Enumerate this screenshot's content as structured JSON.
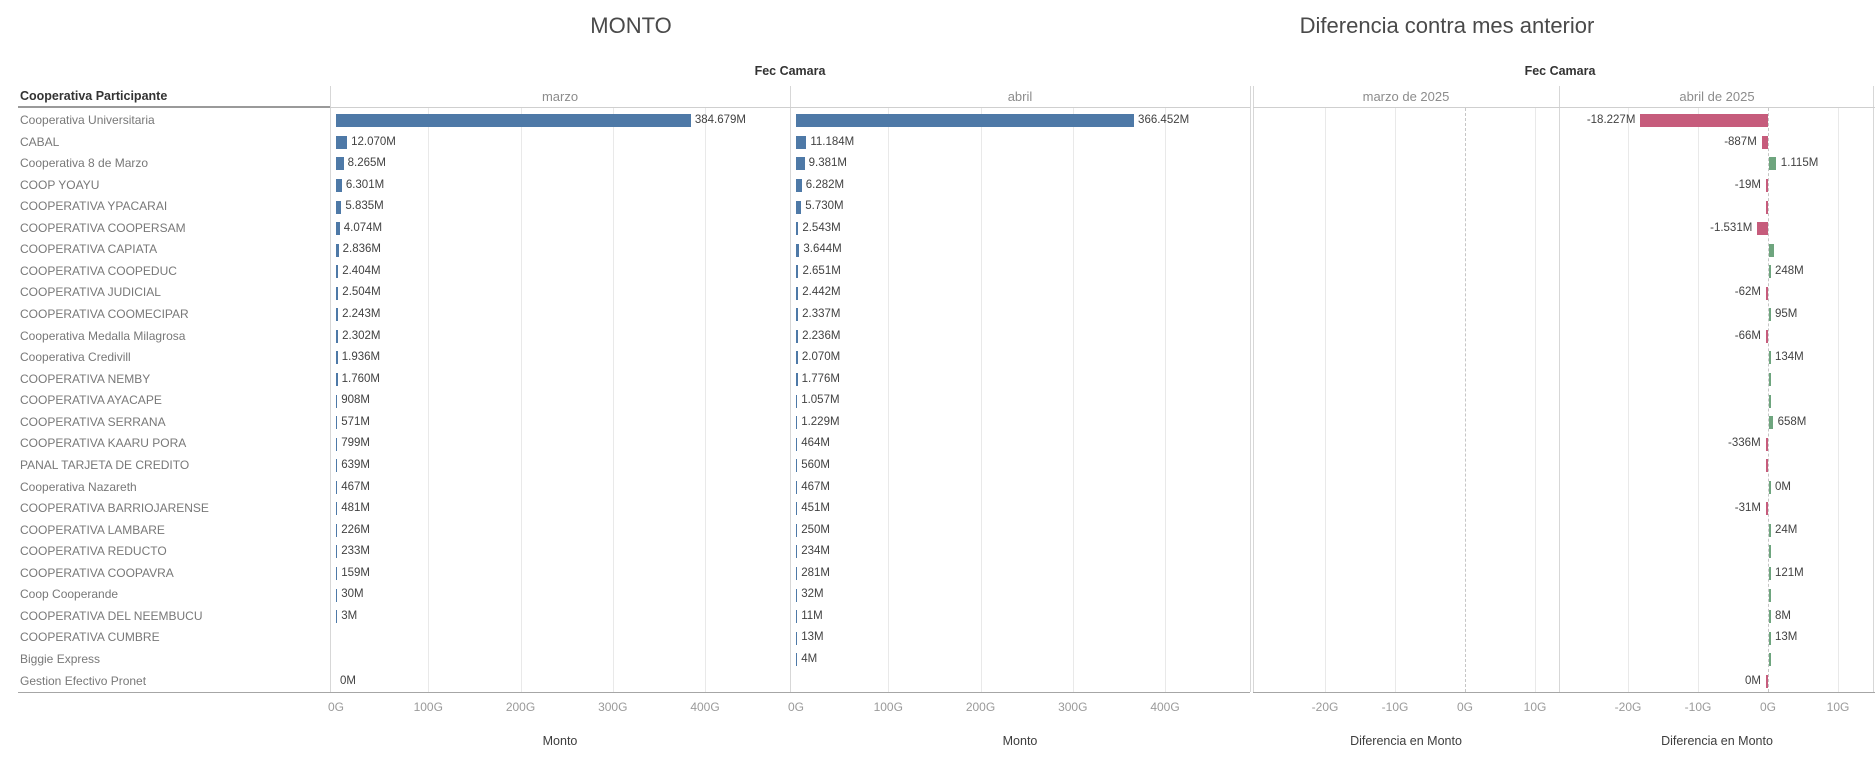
{
  "left_chart": {
    "title": "MONTO",
    "column_group_header": "Fec Camara",
    "row_dimension_header": "Cooperativa Participante",
    "panel_headers": [
      "marzo",
      "abril"
    ],
    "axis_title": "Monto",
    "axis_ticks": [
      "0G",
      "100G",
      "200G",
      "300G",
      "400G"
    ]
  },
  "right_chart": {
    "title": "Diferencia contra mes anterior",
    "column_group_header": "Fec Camara",
    "panel_headers": [
      "marzo de 2025",
      "abril de 2025"
    ],
    "axis_title": "Diferencia en Monto",
    "axis_ticks": [
      "-20G",
      "-10G",
      "0G",
      "10G"
    ]
  },
  "colors": {
    "bar_blue": "#4e79a7",
    "diff_negative": "#c65c7c",
    "diff_positive": "#6ea57e"
  },
  "chart_data": [
    {
      "type": "bar",
      "orientation": "horizontal",
      "title": "MONTO",
      "column_header": "Fec Camara",
      "row_header": "Cooperativa Participante",
      "panels": [
        "marzo",
        "abril"
      ],
      "xlabel": "Monto",
      "x_ticks": [
        "0G",
        "100G",
        "200G",
        "300G",
        "400G"
      ],
      "x_tick_values_g": [
        0,
        100,
        200,
        300,
        400
      ],
      "xlim_g": [
        0,
        494
      ],
      "grid": true,
      "bar_color": "#4e79a7",
      "categories": [
        "Cooperativa Universitaria",
        "CABAL",
        "Cooperativa 8 de Marzo",
        "COOP YOAYU",
        "COOPERATIVA YPACARAI",
        "COOPERATIVA COOPERSAM",
        "COOPERATIVA CAPIATA",
        "COOPERATIVA COOPEDUC",
        "COOPERATIVA JUDICIAL",
        "COOPERATIVA COOMECIPAR",
        "Cooperativa Medalla Milagrosa",
        "Cooperativa Credivill",
        "COOPERATIVA NEMBY",
        "COOPERATIVA AYACAPE",
        "COOPERATIVA SERRANA",
        "COOPERATIVA KAARU PORA",
        "PANAL TARJETA DE CREDITO",
        "Cooperativa Nazareth",
        "COOPERATIVA BARRIOJARENSE",
        "COOPERATIVA LAMBARE",
        "COOPERATIVA REDUCTO",
        "COOPERATIVA COOPAVRA",
        "Coop Cooperande",
        "COOPERATIVA DEL NEEMBUCU",
        "COOPERATIVA CUMBRE",
        "Biggie Express",
        "Gestion Efectivo Pronet"
      ],
      "series": [
        {
          "name": "marzo",
          "values_g": [
            384.679,
            12.07,
            8.265,
            6.301,
            5.835,
            4.074,
            2.836,
            2.404,
            2.504,
            2.243,
            2.302,
            1.936,
            1.76,
            0.908,
            0.571,
            0.799,
            0.639,
            0.467,
            0.481,
            0.226,
            0.233,
            0.159,
            0.03,
            0.003,
            null,
            null,
            0
          ],
          "labels": [
            "384.679M",
            "12.070M",
            "8.265M",
            "6.301M",
            "5.835M",
            "4.074M",
            "2.836M",
            "2.404M",
            "2.504M",
            "2.243M",
            "2.302M",
            "1.936M",
            "1.760M",
            "908M",
            "571M",
            "799M",
            "639M",
            "467M",
            "481M",
            "226M",
            "233M",
            "159M",
            "30M",
            "3M",
            "",
            "",
            "0M"
          ]
        },
        {
          "name": "abril",
          "values_g": [
            366.452,
            11.184,
            9.381,
            6.282,
            5.73,
            2.543,
            3.644,
            2.651,
            2.442,
            2.337,
            2.236,
            2.07,
            1.776,
            1.057,
            1.229,
            0.464,
            0.56,
            0.467,
            0.451,
            0.25,
            0.234,
            0.281,
            0.032,
            0.011,
            0.013,
            0.004,
            null
          ],
          "labels": [
            "366.452M",
            "11.184M",
            "9.381M",
            "6.282M",
            "5.730M",
            "2.543M",
            "3.644M",
            "2.651M",
            "2.442M",
            "2.337M",
            "2.236M",
            "2.070M",
            "1.776M",
            "1.057M",
            "1.229M",
            "464M",
            "560M",
            "467M",
            "451M",
            "250M",
            "234M",
            "281M",
            "32M",
            "11M",
            "13M",
            "4M",
            ""
          ]
        }
      ]
    },
    {
      "type": "bar",
      "orientation": "horizontal",
      "title": "Diferencia contra mes anterior",
      "column_header": "Fec Camara",
      "panels": [
        "marzo de 2025",
        "abril de 2025"
      ],
      "xlabel": "Diferencia en Monto",
      "x_ticks": [
        "-20G",
        "-10G",
        "0G",
        "10G"
      ],
      "x_tick_values_g": [
        -20,
        -10,
        0,
        10
      ],
      "xlim_g": [
        -30,
        15
      ],
      "grid": true,
      "zero_line": "dashed",
      "negative_color": "#c65c7c",
      "positive_color": "#6ea57e",
      "categories": [
        "Cooperativa Universitaria",
        "CABAL",
        "Cooperativa 8 de Marzo",
        "COOP YOAYU",
        "COOPERATIVA YPACARAI",
        "COOPERATIVA COOPERSAM",
        "COOPERATIVA CAPIATA",
        "COOPERATIVA COOPEDUC",
        "COOPERATIVA JUDICIAL",
        "COOPERATIVA COOMECIPAR",
        "Cooperativa Medalla Milagrosa",
        "Cooperativa Credivill",
        "COOPERATIVA NEMBY",
        "COOPERATIVA AYACAPE",
        "COOPERATIVA SERRANA",
        "COOPERATIVA KAARU PORA",
        "PANAL TARJETA DE CREDITO",
        "Cooperativa Nazareth",
        "COOPERATIVA BARRIOJARENSE",
        "COOPERATIVA LAMBARE",
        "COOPERATIVA REDUCTO",
        "COOPERATIVA COOPAVRA",
        "Coop Cooperande",
        "COOPERATIVA DEL NEEMBUCU",
        "COOPERATIVA CUMBRE",
        "Biggie Express",
        "Gestion Efectivo Pronet"
      ],
      "series": [
        {
          "name": "marzo de 2025",
          "has_data": false,
          "values_g": [],
          "labels": []
        },
        {
          "name": "abril de 2025",
          "has_data": true,
          "values_g": [
            -18.227,
            -0.887,
            1.115,
            -0.019,
            -0.105,
            -1.531,
            0.808,
            0.248,
            -0.062,
            0.095,
            -0.066,
            0.134,
            0.016,
            0.149,
            0.658,
            -0.336,
            -0.079,
            0,
            -0.031,
            0.024,
            0.001,
            0.121,
            0.002,
            0.008,
            0.013,
            0.004,
            0
          ],
          "labels": [
            "-18.227M",
            "-887M",
            "1.115M",
            "-19M",
            "",
            "-1.531M",
            "",
            "248M",
            "-62M",
            "95M",
            "-66M",
            "134M",
            "",
            "",
            "658M",
            "-336M",
            "",
            "0M",
            "-31M",
            "24M",
            "",
            "121M",
            "",
            "8M",
            "13M",
            "",
            "0M"
          ],
          "signs": [
            "neg",
            "neg",
            "pos",
            "neg",
            "neg",
            "neg",
            "pos",
            "pos",
            "neg",
            "pos",
            "neg",
            "pos",
            "pos",
            "pos",
            "pos",
            "neg",
            "neg",
            "pos",
            "neg",
            "pos",
            "pos",
            "pos",
            "pos",
            "pos",
            "pos",
            "pos",
            "neg"
          ]
        }
      ]
    }
  ]
}
